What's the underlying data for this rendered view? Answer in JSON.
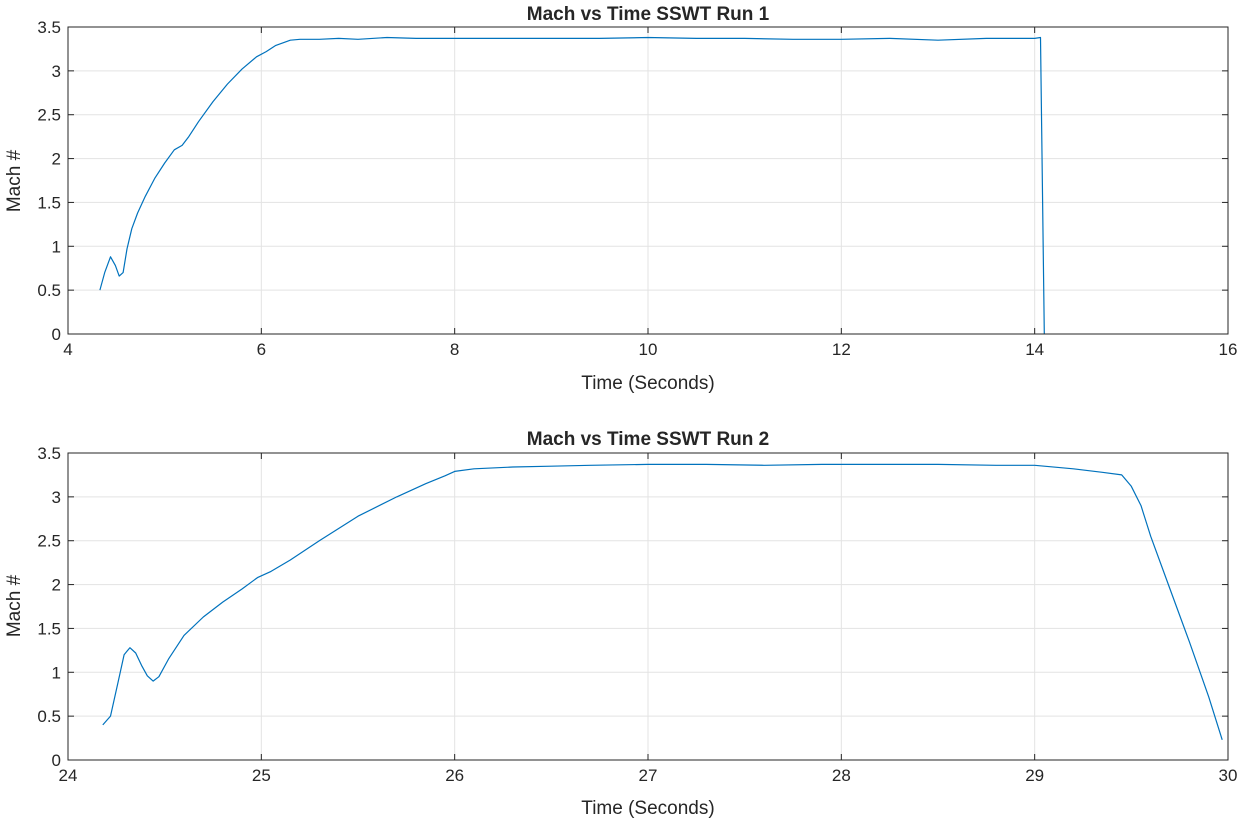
{
  "chart_data": [
    {
      "type": "line",
      "title": "Mach vs Time SSWT Run 1",
      "xlabel": "Time (Seconds)",
      "ylabel": "Mach #",
      "xlim": [
        4,
        16
      ],
      "ylim": [
        0,
        3.5
      ],
      "xticks": [
        4,
        6,
        8,
        10,
        12,
        14,
        16
      ],
      "yticks": [
        0,
        0.5,
        1,
        1.5,
        2,
        2.5,
        3,
        3.5
      ],
      "xtick_labels": [
        "4",
        "6",
        "8",
        "10",
        "12",
        "14",
        "16"
      ],
      "ytick_labels": [
        "0",
        "0.5",
        "1",
        "1.5",
        "2",
        "2.5",
        "3",
        "3.5"
      ],
      "grid": true,
      "series_color": "#0072BD",
      "series": [
        {
          "x": [
            4.33,
            4.38,
            4.44,
            4.49,
            4.53,
            4.57,
            4.61,
            4.66,
            4.72,
            4.8,
            4.9,
            5.0,
            5.1,
            5.18,
            5.25,
            5.35,
            5.5,
            5.65,
            5.8,
            5.95,
            6.05,
            6.15,
            6.25,
            6.3,
            6.4,
            6.6,
            6.8,
            7.0,
            7.3,
            7.6,
            8.0,
            8.5,
            9.0,
            9.5,
            10.0,
            10.5,
            11.0,
            11.5,
            12.0,
            12.5,
            13.0,
            13.5,
            13.9,
            14.0,
            14.06,
            14.1
          ],
          "y": [
            0.5,
            0.7,
            0.88,
            0.78,
            0.66,
            0.7,
            0.97,
            1.2,
            1.38,
            1.57,
            1.78,
            1.95,
            2.1,
            2.15,
            2.25,
            2.42,
            2.65,
            2.85,
            3.02,
            3.16,
            3.22,
            3.29,
            3.33,
            3.35,
            3.36,
            3.36,
            3.37,
            3.36,
            3.38,
            3.37,
            3.37,
            3.37,
            3.37,
            3.37,
            3.38,
            3.37,
            3.37,
            3.36,
            3.36,
            3.37,
            3.35,
            3.37,
            3.37,
            3.37,
            3.38,
            0.0
          ]
        }
      ]
    },
    {
      "type": "line",
      "title": "Mach vs Time SSWT Run 2",
      "xlabel": "Time (Seconds)",
      "ylabel": "Mach #",
      "xlim": [
        24,
        30
      ],
      "ylim": [
        0,
        3.5
      ],
      "xticks": [
        24,
        25,
        26,
        27,
        28,
        29,
        30
      ],
      "yticks": [
        0,
        0.5,
        1,
        1.5,
        2,
        2.5,
        3,
        3.5
      ],
      "xtick_labels": [
        "24",
        "25",
        "26",
        "27",
        "28",
        "29",
        "30"
      ],
      "ytick_labels": [
        "0",
        "0.5",
        "1",
        "1.5",
        "2",
        "2.5",
        "3",
        "3.5"
      ],
      "grid": true,
      "series_color": "#0072BD",
      "series": [
        {
          "x": [
            24.18,
            24.22,
            24.26,
            24.29,
            24.32,
            24.35,
            24.38,
            24.41,
            24.44,
            24.47,
            24.52,
            24.6,
            24.7,
            24.8,
            24.9,
            24.98,
            25.05,
            25.15,
            25.3,
            25.5,
            25.7,
            25.85,
            25.95,
            26.0,
            26.1,
            26.3,
            26.5,
            26.7,
            27.0,
            27.3,
            27.6,
            27.9,
            28.2,
            28.5,
            28.8,
            29.0,
            29.2,
            29.35,
            29.45,
            29.5,
            29.55,
            29.6,
            29.7,
            29.8,
            29.9,
            29.97
          ],
          "y": [
            0.4,
            0.5,
            0.9,
            1.2,
            1.28,
            1.22,
            1.08,
            0.96,
            0.9,
            0.95,
            1.15,
            1.42,
            1.63,
            1.8,
            1.95,
            2.08,
            2.15,
            2.28,
            2.5,
            2.78,
            3.0,
            3.15,
            3.24,
            3.29,
            3.32,
            3.34,
            3.35,
            3.36,
            3.37,
            3.37,
            3.36,
            3.37,
            3.37,
            3.37,
            3.36,
            3.36,
            3.32,
            3.28,
            3.25,
            3.12,
            2.9,
            2.55,
            1.95,
            1.35,
            0.72,
            0.23
          ]
        }
      ]
    }
  ]
}
